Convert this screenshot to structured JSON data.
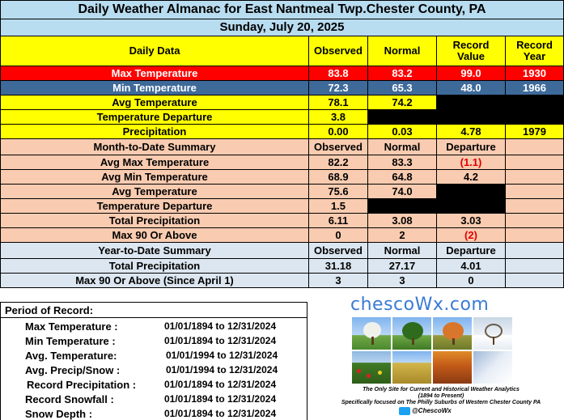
{
  "title": "Daily Weather Almanac for East Nantmeal Twp.Chester County, PA",
  "date": "Sunday, July 20, 2025",
  "colors": {
    "header_blue": "#b8dcf0",
    "yellow": "#ffff00",
    "max_red": "#ff0000",
    "min_blue": "#3e6a9a",
    "peach": "#f9cbb0",
    "light_blue": "#dce6f0",
    "black": "#000000"
  },
  "daily": {
    "headers": [
      "Daily Data",
      "Observed",
      "Normal",
      "Record Value",
      "Record Year"
    ],
    "rows": [
      {
        "label": "Max Temperature",
        "observed": "83.8",
        "normal": "83.2",
        "record": "99.0",
        "year": "1930"
      },
      {
        "label": "Min Temperature",
        "observed": "72.3",
        "normal": "65.3",
        "record": "48.0",
        "year": "1966"
      },
      {
        "label": "Avg Temperature",
        "observed": "78.1",
        "normal": "74.2",
        "record": "",
        "year": ""
      },
      {
        "label": "Temperature Departure",
        "observed": "3.8",
        "normal": "",
        "record": "",
        "year": ""
      },
      {
        "label": "Precipitation",
        "observed": "0.00",
        "normal": "0.03",
        "record": "4.78",
        "year": "1979"
      }
    ]
  },
  "mtd": {
    "headers": [
      "Month-to-Date Summary",
      "Observed",
      "Normal",
      "Departure"
    ],
    "rows": [
      {
        "label": "Avg Max Temperature",
        "observed": "82.2",
        "normal": "83.3",
        "departure": "(1.1)"
      },
      {
        "label": "Avg Min Temperature",
        "observed": "68.9",
        "normal": "64.8",
        "departure": "4.2"
      },
      {
        "label": "Avg Temperature",
        "observed": "75.6",
        "normal": "74.0",
        "departure": ""
      },
      {
        "label": "Temperature Departure",
        "observed": "1.5",
        "normal": "",
        "departure": ""
      },
      {
        "label": "Total Precipitation",
        "observed": "6.11",
        "normal": "3.08",
        "departure": "3.03"
      },
      {
        "label": "Max 90 Or Above",
        "observed": "0",
        "normal": "2",
        "departure": "(2)"
      }
    ]
  },
  "ytd": {
    "headers": [
      "Year-to-Date Summary",
      "Observed",
      "Normal",
      "Departure"
    ],
    "rows": [
      {
        "label": "Total Precipitation",
        "observed": "31.18",
        "normal": "27.17",
        "departure": "4.01"
      },
      {
        "label": "Max 90 Or Above (Since April 1)",
        "observed": "3",
        "normal": "3",
        "departure": "0"
      }
    ]
  },
  "period_of_record": {
    "heading": "Period of Record:",
    "rows": [
      {
        "label": "Max Temperature :",
        "range": "01/01/1894 to 12/31/2024"
      },
      {
        "label": "Min Temperature :",
        "range": "01/01/1894 to 12/31/2024"
      },
      {
        "label": "Avg. Temperature:",
        "range": "01/01/1994 to 12/31/2024"
      },
      {
        "label": "Avg. Precip/Snow :",
        "range": "01/01/1994 to 12/31/2024"
      },
      {
        "label": "Record Precipitation :",
        "range": "01/01/1894 to 12/31/2024"
      },
      {
        "label": "Record Snowfall :",
        "range": "01/01/1894 to 12/31/2024"
      },
      {
        "label": "Snow Depth :",
        "range": "01/01/1894 to 12/31/2024"
      }
    ]
  },
  "logo": {
    "name": "chescoWx.com",
    "tagline1": "The Only Site for Current and Historical Weather Analytics",
    "tagline2": "(1894 to Present)",
    "tagline3": "Specifically focused on The Philly Suburbs of Western Chester County PA",
    "twitter": "@ChescoWx"
  }
}
